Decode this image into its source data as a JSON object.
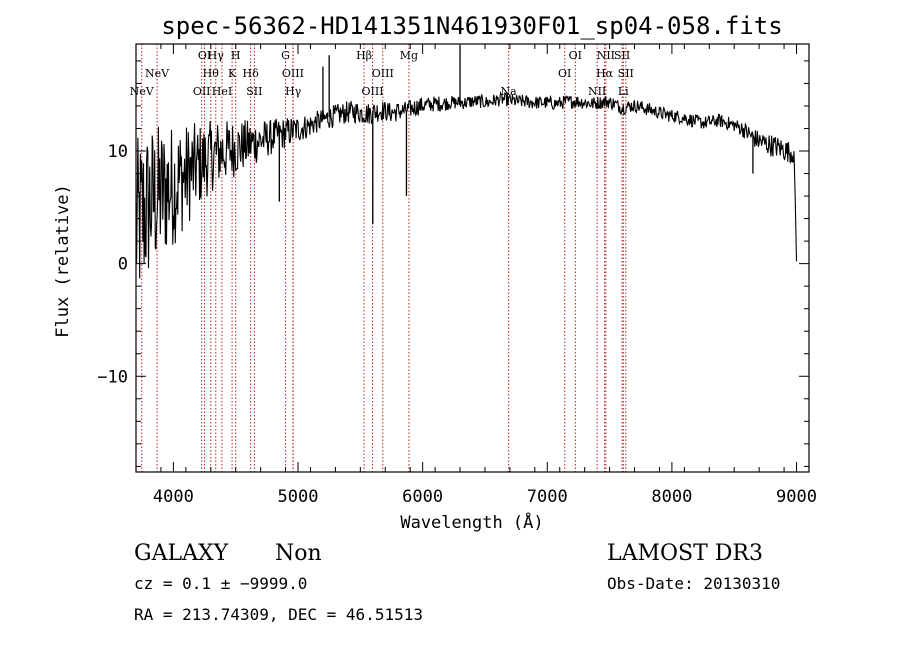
{
  "chart_data": {
    "type": "line",
    "title": "spec-56362-HD141351N461930F01_sp04-058.fits",
    "xlabel": "Wavelength (Å)",
    "ylabel": "Flux (relative)",
    "xlim": [
      3700,
      9100
    ],
    "ylim": [
      -18.5,
      19.5
    ],
    "x_ticks": [
      4000,
      5000,
      6000,
      7000,
      8000,
      9000
    ],
    "x_tick_labels": [
      "4000",
      "5000",
      "6000",
      "7000",
      "8000",
      "9000"
    ],
    "y_ticks": [
      10,
      0,
      -10
    ],
    "y_tick_labels": [
      "10",
      "0",
      "−10"
    ],
    "series": [
      {
        "name": "flux",
        "color": "#000000",
        "x": [
          3700,
          3760,
          3820,
          3880,
          3940,
          4000,
          4060,
          4120,
          4180,
          4240,
          4300,
          4360,
          4420,
          4480,
          4540,
          4600,
          4660,
          4720,
          4780,
          4840,
          4900,
          4960,
          5020,
          5080,
          5140,
          5200,
          5260,
          5320,
          5380,
          5440,
          5500,
          5560,
          5620,
          5680,
          5740,
          5800,
          5860,
          5920,
          5980,
          6040,
          6100,
          6160,
          6220,
          6280,
          6340,
          6400,
          6460,
          6520,
          6580,
          6640,
          6700,
          6760,
          6820,
          6880,
          6940,
          7000,
          7060,
          7120,
          7180,
          7240,
          7300,
          7360,
          7420,
          7480,
          7540,
          7600,
          7660,
          7720,
          7780,
          7840,
          7900,
          7960,
          8020,
          8080,
          8140,
          8200,
          8260,
          8320,
          8380,
          8440,
          8500,
          8560,
          8620,
          8680,
          8740,
          8800,
          8860,
          8920,
          8980,
          9000
        ],
        "y": [
          3.0,
          4.5,
          5.5,
          6.0,
          6.5,
          7.0,
          7.5,
          8.0,
          8.5,
          9.0,
          9.5,
          9.8,
          10.0,
          10.2,
          10.4,
          10.6,
          10.8,
          11.0,
          11.2,
          11.4,
          11.6,
          11.8,
          12.0,
          12.2,
          12.5,
          12.8,
          13.0,
          13.2,
          13.4,
          13.5,
          13.4,
          13.3,
          13.5,
          13.6,
          13.4,
          13.5,
          13.6,
          13.8,
          14.0,
          14.1,
          14.2,
          14.2,
          14.3,
          14.3,
          14.3,
          14.4,
          14.4,
          14.3,
          14.5,
          14.6,
          14.5,
          14.4,
          14.4,
          14.3,
          14.3,
          14.3,
          14.2,
          14.3,
          14.4,
          14.4,
          14.3,
          14.2,
          14.3,
          14.4,
          14.2,
          13.8,
          14.0,
          14.0,
          13.8,
          13.6,
          13.4,
          13.2,
          13.1,
          13.0,
          12.8,
          12.6,
          12.5,
          12.6,
          12.7,
          12.5,
          12.3,
          12.0,
          11.5,
          11.0,
          10.7,
          10.5,
          10.3,
          10.0,
          9.8,
          0.2
        ],
        "noise_amp": [
          8,
          7.5,
          7,
          6.5,
          6,
          5.5,
          5,
          4.5,
          4,
          3.5,
          3.2,
          3,
          2.8,
          2.6,
          2.4,
          2.2,
          2,
          1.8,
          1.6,
          1.5,
          1.4,
          1.3,
          1.2,
          1.1,
          1.0,
          1.0,
          1.0,
          1.0,
          1.0,
          1.0,
          1.0,
          1.0,
          1.0,
          0.9,
          0.9,
          0.9,
          0.8,
          0.8,
          0.8,
          0.7,
          0.7,
          0.7,
          0.6,
          0.6,
          0.6,
          0.6,
          0.6,
          0.6,
          0.6,
          0.6,
          0.6,
          0.6,
          0.6,
          0.6,
          0.6,
          0.6,
          0.6,
          0.6,
          0.6,
          0.6,
          0.6,
          0.6,
          0.6,
          0.6,
          0.6,
          0.6,
          0.6,
          0.6,
          0.6,
          0.6,
          0.6,
          0.6,
          0.6,
          0.6,
          0.6,
          0.6,
          0.6,
          0.6,
          0.6,
          0.6,
          0.6,
          0.7,
          0.8,
          0.9,
          1.0,
          1.0,
          1.0,
          1.0,
          1.0,
          0
        ],
        "spikes": [
          {
            "x": 6300,
            "y": 19.3
          },
          {
            "x": 5250,
            "y": 18.5
          },
          {
            "x": 5600,
            "y": 3.5
          },
          {
            "x": 5200,
            "y": 17.5
          },
          {
            "x": 4850,
            "y": 5.5
          },
          {
            "x": 5870,
            "y": 6.0
          },
          {
            "x": 8650,
            "y": 8.0
          }
        ]
      }
    ],
    "line_marks": [
      {
        "wave": 3746,
        "label": "NeV",
        "row": 3
      },
      {
        "wave": 3869,
        "label": "NeV",
        "row": 2
      },
      {
        "wave": 4227,
        "label": "OII",
        "row": 3
      },
      {
        "wave": 4250,
        "label": "OI",
        "row": 0
      },
      {
        "wave": 4300,
        "label": "Hθ",
        "row": 2
      },
      {
        "wave": 4340,
        "label": "Hγ",
        "row": 0
      },
      {
        "wave": 4390,
        "label": "HeI",
        "row": 3
      },
      {
        "wave": 4471,
        "label": "K",
        "row": 2
      },
      {
        "wave": 4500,
        "label": "H",
        "row": 0
      },
      {
        "wave": 4620,
        "label": "Hδ",
        "row": 2
      },
      {
        "wave": 4650,
        "label": "SII",
        "row": 3
      },
      {
        "wave": 4900,
        "label": "G",
        "row": 0
      },
      {
        "wave": 4959,
        "label": "OIII",
        "row": 2
      },
      {
        "wave": 4961,
        "label": "Hγ",
        "row": 3
      },
      {
        "wave": 5530,
        "label": "Hβ",
        "row": 0
      },
      {
        "wave": 5598,
        "label": "OIII",
        "row": 3
      },
      {
        "wave": 5680,
        "label": "OIII",
        "row": 2
      },
      {
        "wave": 5890,
        "label": "Mg",
        "row": 0
      },
      {
        "wave": 6690,
        "label": "Na",
        "row": 3
      },
      {
        "wave": 7140,
        "label": "OI",
        "row": 2
      },
      {
        "wave": 7225,
        "label": "OI",
        "row": 0
      },
      {
        "wave": 7400,
        "label": "NII",
        "row": 3
      },
      {
        "wave": 7470,
        "label": "NII",
        "row": 0
      },
      {
        "wave": 7460,
        "label": "Hα",
        "row": 2
      },
      {
        "wave": 7600,
        "label": "SII",
        "row": 0
      },
      {
        "wave": 7610,
        "label": "Li",
        "row": 3
      },
      {
        "wave": 7630,
        "label": "SII",
        "row": 2
      }
    ]
  },
  "info": {
    "object_class": "GALAXY",
    "subclass": "Non",
    "survey": "LAMOST DR3",
    "cz_line": "cz = 0.1 ± −9999.0",
    "obs_date_line": "Obs-Date: 20130310",
    "coords_line": "RA = 213.74309, DEC =  46.51513"
  }
}
